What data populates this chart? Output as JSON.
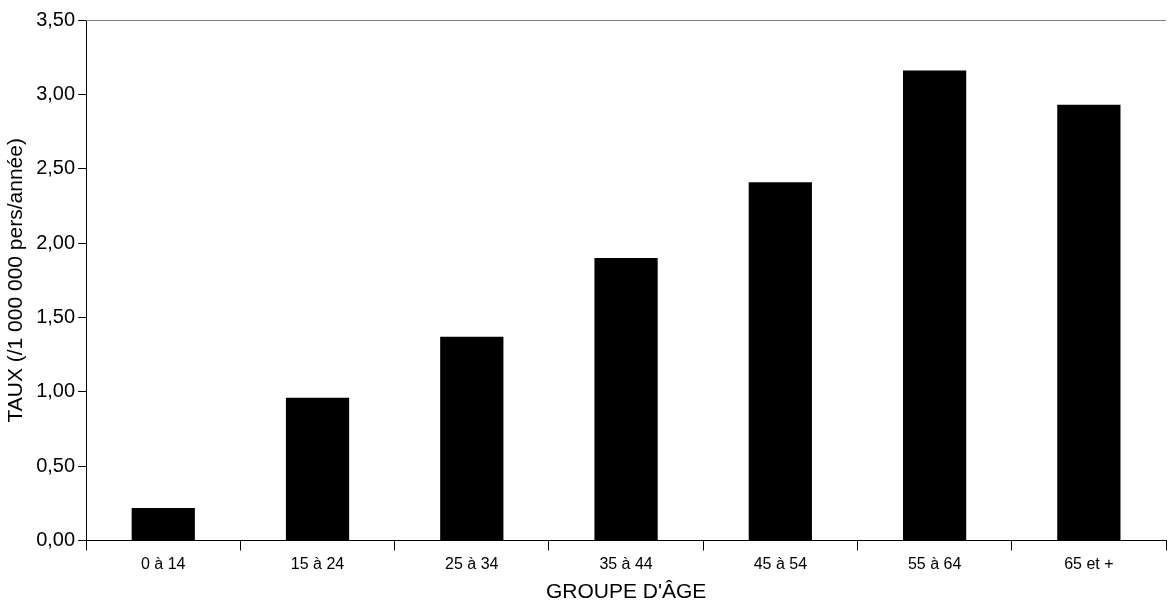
{
  "chart_data": {
    "type": "bar",
    "xlabel": "GROUPE D'ÂGE",
    "ylabel": "TAUX (/1 000 000 pers/année)",
    "categories": [
      "0 à 14",
      "15 à 24",
      "25 à 34",
      "35 à 44",
      "45 à 54",
      "55 à 64",
      "65 et +"
    ],
    "values": [
      0.22,
      0.96,
      1.37,
      1.9,
      2.41,
      3.16,
      2.93
    ],
    "color": "#000000",
    "ylim": [
      0,
      3.5
    ],
    "yticks": [
      {
        "value": 0,
        "label": "0,00"
      },
      {
        "value": 0.5,
        "label": "0,50"
      },
      {
        "value": 1,
        "label": "1,00"
      },
      {
        "value": 1.5,
        "label": "1,50"
      },
      {
        "value": 2,
        "label": "2,00"
      },
      {
        "value": 2.5,
        "label": "2,50"
      },
      {
        "value": 3,
        "label": "3,00"
      },
      {
        "value": 3.5,
        "label": "3,50"
      }
    ],
    "grid": false,
    "legend": false
  }
}
